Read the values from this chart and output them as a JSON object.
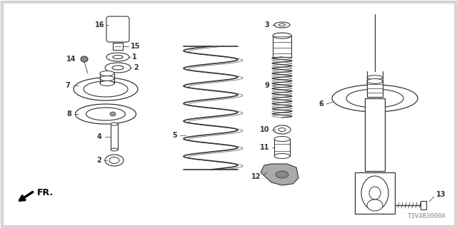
{
  "diagram_code": "T3V4B3000A",
  "background_color": "#f0f0f0",
  "inner_bg": "#ffffff",
  "line_color": "#333333",
  "border_color": "#cccccc"
}
